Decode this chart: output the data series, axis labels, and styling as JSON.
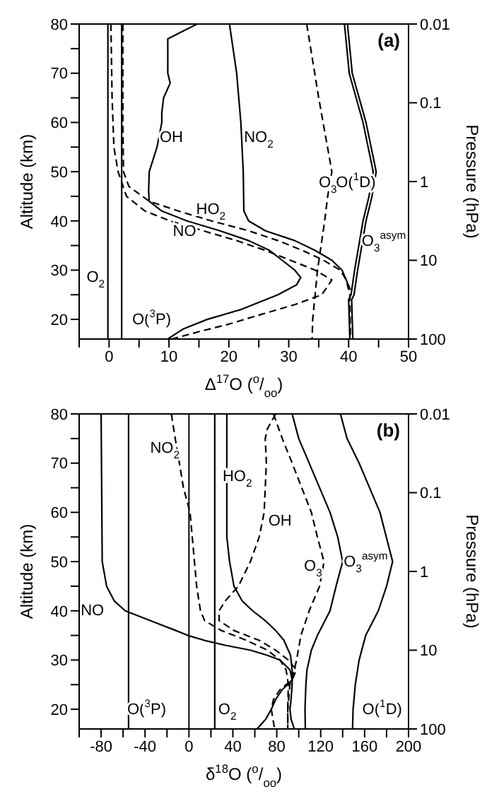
{
  "chart_data": [
    {
      "type": "line",
      "orientation": "horizontal",
      "annotations": [
        "(a)"
      ],
      "xlabel": "Δ$^{17}$O ($^{o}$/$_{oo}$)",
      "ylabel": "Altitude (km)",
      "y2label": "Pressure (hPa)",
      "xlim": [
        -5,
        50
      ],
      "xticks": [
        0,
        10,
        20,
        30,
        40,
        50,
        {
          "value": -5,
          "label": null
        },
        {
          "value": 5,
          "label": null
        },
        {
          "value": 15,
          "label": null
        },
        {
          "value": 25,
          "label": null
        },
        {
          "value": 35,
          "label": null
        },
        {
          "value": 45,
          "label": null
        }
      ],
      "ylim": [
        16,
        80
      ],
      "yticks": [
        20,
        30,
        40,
        50,
        60,
        70,
        80,
        {
          "value": 25,
          "label": null
        },
        {
          "value": 35,
          "label": null
        },
        {
          "value": 45,
          "label": null
        },
        {
          "value": 55,
          "label": null
        },
        {
          "value": 65,
          "label": null
        },
        {
          "value": 75,
          "label": null
        }
      ],
      "y2lim": [
        100,
        0.01
      ],
      "y2ticks": [
        0.01,
        0.1,
        1,
        10,
        100
      ],
      "log": "y2",
      "series": [
        {
          "name": "O$_{2}$",
          "color": "#000000",
          "line_style": "solid",
          "values": [
            -0.2,
            -0.2
          ],
          "x": [
            16,
            80
          ]
        },
        {
          "name": "O($^{3}$P)",
          "color": "#000000",
          "line_style": "solid",
          "values": [
            2.1,
            2.1
          ],
          "x": [
            16,
            80
          ]
        },
        {
          "name": "OH",
          "color": "#000000",
          "line_style": "solid",
          "values": [
            14.7,
            9.8,
            9.8,
            10.2,
            9.1,
            8.8,
            8.8,
            8.0,
            6.7,
            6.6,
            6.7,
            8.8,
            13,
            18.5,
            23.3,
            26.8,
            28.9,
            31,
            32,
            31.3,
            28.2,
            22,
            16.4,
            12.3,
            9.8
          ],
          "x": [
            80,
            77,
            70,
            68,
            65,
            62,
            60,
            55,
            50,
            46,
            44,
            42,
            40,
            38,
            36,
            34,
            32,
            30,
            28.5,
            27,
            25,
            22,
            20,
            18,
            16
          ]
        },
        {
          "name": "NO",
          "color": "#000000",
          "line_style": "dashed",
          "values": [
            0.3,
            0.5,
            0.8,
            1.5,
            2.9,
            6,
            10.2,
            15.7,
            21.3,
            26.1,
            30.3,
            34.4,
            37.2,
            35.5,
            31,
            25.4,
            19.9,
            15,
            10.5
          ],
          "x": [
            80,
            65,
            55,
            50,
            45,
            42,
            40,
            38,
            36,
            34,
            32,
            30,
            28,
            25,
            23,
            21,
            19,
            17.5,
            16
          ]
        },
        {
          "name": "HO$_{2}$",
          "color": "#000000",
          "line_style": "dashed",
          "values": [
            2.3,
            2.3,
            2.4,
            3.3,
            6.7,
            11.6,
            17.1,
            23.3,
            28.2,
            32.3,
            35.8,
            38.6,
            39.6,
            40.2,
            40.3
          ],
          "x": [
            80,
            60,
            50,
            47,
            44,
            42,
            40,
            38,
            36,
            34,
            32,
            30,
            28,
            25,
            16
          ]
        },
        {
          "name": "NO$_{2}$",
          "color": "#000000",
          "line_style": "solid",
          "values": [
            20.1,
            21.3,
            22,
            22.4,
            22.5,
            23.3,
            26.1,
            31,
            34.4,
            37.2,
            38.9,
            39.6,
            40.3
          ],
          "x": [
            80,
            70,
            60,
            50,
            42,
            40,
            38,
            36,
            34,
            32,
            30,
            28,
            26
          ]
        },
        {
          "name": "O$_{3}$",
          "color": "#000000",
          "line_style": "dashed",
          "values": [
            33,
            35,
            37.2,
            36.5,
            36,
            34.8,
            34.4,
            34,
            33.9
          ],
          "x": [
            80,
            65,
            50,
            45,
            40,
            30,
            25,
            20,
            16
          ]
        },
        {
          "name": "O($^{1}$D)",
          "color": "#000000",
          "line_style": "solid",
          "values": [
            39.3,
            40.1,
            42.4,
            44.1,
            43.4,
            42.4,
            41.7,
            41,
            40.4,
            40,
            40.2
          ],
          "x": [
            80,
            70,
            60,
            50,
            45,
            40,
            35,
            30,
            25,
            24,
            16
          ]
        },
        {
          "name": "O$_{3}$$^{asym}$",
          "color": "#000000",
          "line_style": "solid",
          "values": [
            39.8,
            40.6,
            42.9,
            44.6,
            43.9,
            42.9,
            42.2,
            41.5,
            40.9,
            40.5,
            40.7
          ],
          "x": [
            80,
            70,
            60,
            50,
            45,
            40,
            35,
            30,
            25,
            24,
            16
          ]
        }
      ]
    },
    {
      "type": "line",
      "orientation": "horizontal",
      "annotations": [
        "(b)"
      ],
      "xlabel": "δ$^{18}$O ($^{o}$/$_{oo}$)",
      "ylabel": "Altitude (km)",
      "y2label": "Pressure (hPa)",
      "xlim": [
        -100,
        200
      ],
      "xticks": [
        -80,
        -40,
        0,
        40,
        80,
        120,
        160,
        200,
        {
          "value": -100,
          "label": null
        },
        {
          "value": -60,
          "label": null
        },
        {
          "value": -20,
          "label": null
        },
        {
          "value": 20,
          "label": null
        },
        {
          "value": 60,
          "label": null
        },
        {
          "value": 100,
          "label": null
        },
        {
          "value": 140,
          "label": null
        },
        {
          "value": 180,
          "label": null
        }
      ],
      "ylim": [
        16,
        80
      ],
      "yticks": [
        20,
        30,
        40,
        50,
        60,
        70,
        80,
        {
          "value": 25,
          "label": null
        },
        {
          "value": 35,
          "label": null
        },
        {
          "value": 45,
          "label": null
        },
        {
          "value": 55,
          "label": null
        },
        {
          "value": 65,
          "label": null
        },
        {
          "value": 75,
          "label": null
        }
      ],
      "y2lim": [
        100,
        0.01
      ],
      "y2ticks": [
        0.01,
        0.1,
        1,
        10,
        100
      ],
      "log": "y2",
      "ref_lines": [
        {
          "axis": "x",
          "value": 0,
          "color": "#000000"
        }
      ],
      "series": [
        {
          "name": "NO",
          "color": "#000000",
          "line_style": "solid",
          "values": [
            -80,
            -79,
            -75,
            -68,
            -58,
            -35,
            -12,
            -1,
            14,
            33,
            56,
            71,
            83,
            92,
            94,
            90,
            85,
            79,
            75,
            70,
            62
          ],
          "x": [
            80,
            50,
            45,
            42,
            40,
            38,
            36,
            35,
            34,
            33,
            32,
            31,
            30,
            28,
            26,
            25,
            24,
            22,
            20,
            18,
            16
          ]
        },
        {
          "name": "O($^{3}$P)",
          "color": "#000000",
          "line_style": "solid",
          "values": [
            -55,
            -55
          ],
          "x": [
            16,
            80
          ]
        },
        {
          "name": "O$_{2}$",
          "color": "#000000",
          "line_style": "solid",
          "values": [
            23.5,
            23.5
          ],
          "x": [
            16,
            80
          ]
        },
        {
          "name": "HO$_{2}$",
          "color": "#000000",
          "line_style": "solid",
          "values": [
            34.5,
            34.5,
            37,
            41,
            48.5,
            58,
            69.5,
            79,
            86.5,
            90.5,
            92.5,
            94,
            94,
            93,
            92,
            93,
            96
          ],
          "x": [
            80,
            55,
            50,
            45,
            42,
            40,
            38,
            36,
            34,
            32,
            31,
            28,
            25,
            22,
            20,
            18,
            16
          ]
        },
        {
          "name": "O$_{3}$$^{asym}$",
          "color": "#000000",
          "line_style": "solid",
          "values": [
            94,
            100,
            109.5,
            128.5,
            135.5,
            140,
            134,
            128.5,
            117,
            111.5,
            109.5,
            107.5,
            106.5,
            105.7,
            106
          ],
          "x": [
            80,
            75,
            70,
            60,
            55,
            50,
            45,
            40,
            35,
            32,
            30,
            28,
            25,
            20,
            16
          ]
        },
        {
          "name": "O($^{1}$D)",
          "color": "#000000",
          "line_style": "solid",
          "values": [
            138,
            144,
            155,
            174,
            185.5,
            180,
            172.5,
            161,
            155,
            151.5,
            149.5,
            149
          ],
          "x": [
            80,
            75,
            70,
            60,
            50,
            45,
            40,
            35,
            30,
            25,
            20,
            16
          ]
        },
        {
          "name": "O$_{3}$",
          "color": "#000000",
          "line_style": "dashed",
          "values": [
            77,
            85,
            94,
            111.5,
            117,
            123,
            119,
            109.5,
            102,
            98,
            96,
            92,
            90,
            90
          ],
          "x": [
            80,
            75,
            70,
            60,
            55,
            50,
            45,
            40,
            35,
            30,
            28,
            25,
            20,
            16
          ]
        },
        {
          "name": "OH",
          "color": "#000000",
          "line_style": "dashed",
          "values": [
            79,
            71.5,
            69.5,
            70.5,
            69.5,
            68.5,
            64,
            56,
            45,
            33,
            27.5,
            27.5,
            41,
            64,
            79,
            90.5,
            98,
            94,
            83,
            77,
            75,
            78
          ],
          "x": [
            80,
            77,
            75,
            70,
            65,
            60,
            55,
            50,
            45,
            42,
            40,
            38,
            36,
            34,
            32,
            30,
            28,
            26,
            24,
            22,
            20,
            16
          ]
        },
        {
          "name": "NO$_{2}$",
          "color": "#000000",
          "line_style": "dashed",
          "values": [
            -16,
            -12.5,
            -8.7,
            -5,
            1,
            3,
            5,
            7,
            10.5,
            14.3,
            29.5,
            52.5,
            71.5,
            83,
            88.5,
            90.5,
            90,
            90
          ],
          "x": [
            80,
            75,
            70,
            65,
            60,
            55,
            50,
            45,
            40,
            38,
            36,
            34,
            32,
            30,
            28,
            25,
            20,
            16
          ]
        }
      ]
    }
  ]
}
